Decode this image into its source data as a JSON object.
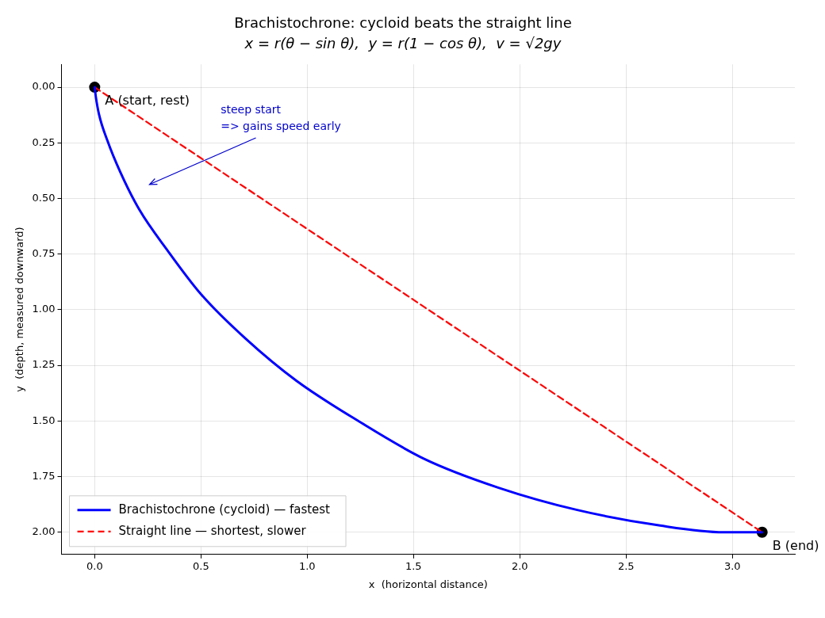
{
  "chart_data": {
    "type": "line",
    "title": "Brachistochrone: cycloid beats the straight line",
    "subtitle": "x = r(θ − sin θ),  y = r(1 − cos θ),  v = √2gy",
    "xlabel": "x  (horizontal distance)",
    "ylabel": "y  (depth, measured downward)",
    "xlim": [
      -0.156,
      3.294
    ],
    "ylim": [
      2.1,
      -0.103
    ],
    "xticks": [
      {
        "value": 0,
        "label": "0.0"
      },
      {
        "value": 0.5,
        "label": "0.5"
      },
      {
        "value": 1,
        "label": "1.0"
      },
      {
        "value": 1.5,
        "label": "1.5"
      },
      {
        "value": 2,
        "label": "2.0"
      },
      {
        "value": 2.5,
        "label": "2.5"
      },
      {
        "value": 3,
        "label": "3.0"
      }
    ],
    "yticks": [
      {
        "value": 0,
        "label": "0.00"
      },
      {
        "value": 0.25,
        "label": "0.25"
      },
      {
        "value": 0.5,
        "label": "0.50"
      },
      {
        "value": 0.75,
        "label": "0.75"
      },
      {
        "value": 1,
        "label": "1.00"
      },
      {
        "value": 1.25,
        "label": "1.25"
      },
      {
        "value": 1.5,
        "label": "1.50"
      },
      {
        "value": 1.75,
        "label": "1.75"
      },
      {
        "value": 2,
        "label": "2.00"
      }
    ],
    "grid": true,
    "legend": "bottom left",
    "series": [
      {
        "name": "Brachistochrone (cycloid) — fastest",
        "color": "#0000ff",
        "line_style": "solid",
        "marker": "none",
        "x": [
          0,
          0.005,
          0.02,
          0.06,
          0.12,
          0.21,
          0.34,
          0.5,
          0.71,
          0.95,
          1.24,
          1.55,
          1.9,
          2.27,
          2.66,
          2.96,
          3.14
        ],
        "values": [
          0,
          0.04,
          0.12,
          0.24,
          0.38,
          0.55,
          0.73,
          0.93,
          1.13,
          1.32,
          1.5,
          1.67,
          1.8,
          1.9,
          1.97,
          2,
          2
        ]
      },
      {
        "name": "Straight line — shortest, slower",
        "color": "#ff0000",
        "line_style": "dashed",
        "marker": "none",
        "x": [
          0,
          3.14
        ],
        "values": [
          0,
          2
        ]
      },
      {
        "type": "scatter",
        "color": "#000000",
        "marker": "circle",
        "x": [
          0,
          3.14
        ],
        "values": [
          0,
          2
        ]
      }
    ],
    "annotations": [
      {
        "text": "A (start, rest)",
        "x": 0,
        "y": 0
      },
      {
        "text": "B (end)",
        "x": 3.14,
        "y": 2
      },
      "steep start\n=> gains speed early"
    ]
  }
}
